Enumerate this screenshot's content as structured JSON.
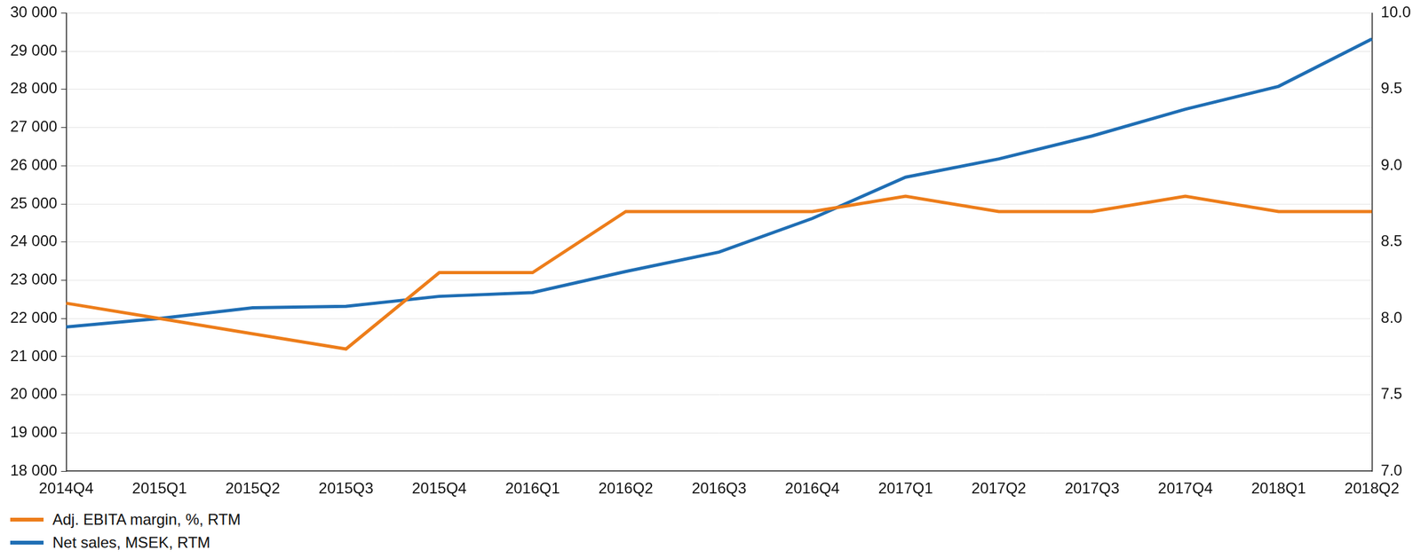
{
  "chart_data": {
    "type": "line",
    "categories": [
      "2014Q4",
      "2015Q1",
      "2015Q2",
      "2015Q3",
      "2015Q4",
      "2016Q1",
      "2016Q2",
      "2016Q3",
      "2016Q4",
      "2017Q1",
      "2017Q2",
      "2017Q3",
      "2017Q4",
      "2018Q1",
      "2018Q2"
    ],
    "series": [
      {
        "name": "Adj. EBITA margin, %, RTM",
        "color": "#ed7d1a",
        "axis": "y2",
        "values": [
          8.1,
          8.0,
          7.9,
          7.8,
          8.3,
          8.3,
          8.7,
          8.7,
          8.7,
          8.8,
          8.7,
          8.7,
          8.8,
          8.7,
          8.7
        ]
      },
      {
        "name": "Net sales, MSEK, RTM",
        "color": "#1f6eb4",
        "values": [
          21780,
          22000,
          22280,
          22320,
          22580,
          22680,
          23230,
          23740,
          24620,
          25700,
          26180,
          26780,
          27480,
          28080,
          29320
        ]
      }
    ],
    "ylim": [
      18000,
      30000
    ],
    "yticks": [
      {
        "value": 18000,
        "label": "18 000"
      },
      {
        "value": 19000,
        "label": "19 000"
      },
      {
        "value": 20000,
        "label": "20 000"
      },
      {
        "value": 21000,
        "label": "21 000"
      },
      {
        "value": 22000,
        "label": "22 000"
      },
      {
        "value": 23000,
        "label": "23 000"
      },
      {
        "value": 24000,
        "label": "24 000"
      },
      {
        "value": 25000,
        "label": "25 000"
      },
      {
        "value": 26000,
        "label": "26 000"
      },
      {
        "value": 27000,
        "label": "27 000"
      },
      {
        "value": 28000,
        "label": "28 000"
      },
      {
        "value": 29000,
        "label": "29 000"
      },
      {
        "value": 30000,
        "label": "30 000"
      }
    ],
    "y2lim": [
      7,
      10
    ],
    "y2ticks": [
      {
        "value": 7,
        "label": "7.0"
      },
      7.5,
      {
        "value": 8,
        "label": "8.0"
      },
      8.5,
      {
        "value": 9,
        "label": "9.0"
      },
      9.5,
      {
        "value": 10,
        "label": "10.0"
      }
    ],
    "grid": true,
    "legend": "lower left"
  }
}
